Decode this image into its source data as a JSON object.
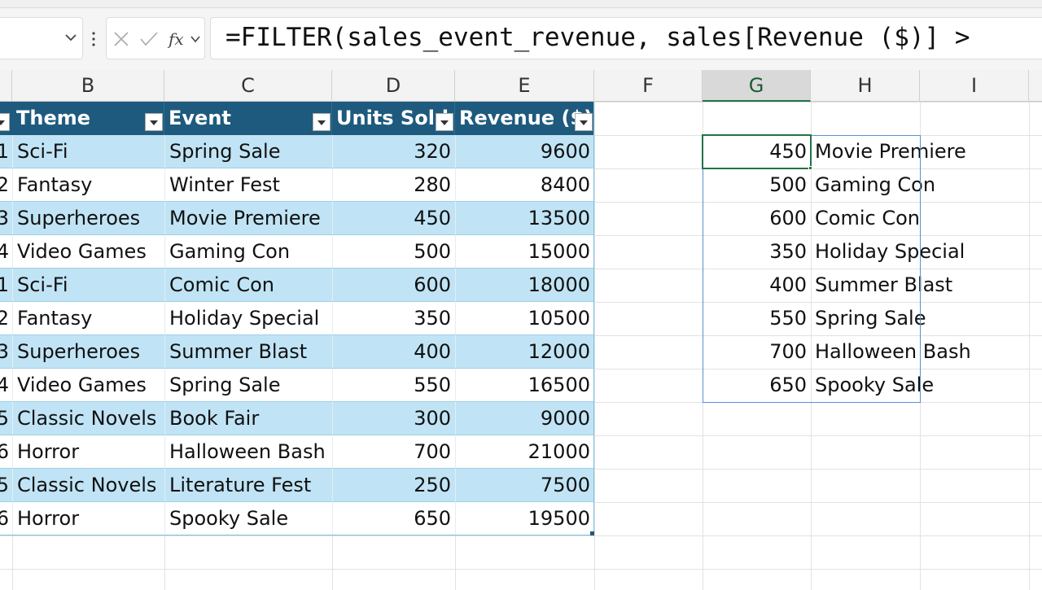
{
  "formula_bar": {
    "formula": "=FILTER(sales_event_revenue, sales[Revenue ($)] >"
  },
  "columns": [
    "B",
    "C",
    "D",
    "E",
    "F",
    "G",
    "H",
    "I"
  ],
  "table": {
    "headers": [
      "Theme",
      "Event",
      "Units Sold",
      "Revenue ($)"
    ],
    "rows": [
      [
        1,
        "Sci-Fi",
        "Spring Sale",
        320,
        9600
      ],
      [
        2,
        "Fantasy",
        "Winter Fest",
        280,
        8400
      ],
      [
        3,
        "Superheroes",
        "Movie Premiere",
        450,
        13500
      ],
      [
        4,
        "Video Games",
        "Gaming Con",
        500,
        15000
      ],
      [
        1,
        "Sci-Fi",
        "Comic Con",
        600,
        18000
      ],
      [
        2,
        "Fantasy",
        "Holiday Special",
        350,
        10500
      ],
      [
        3,
        "Superheroes",
        "Summer Blast",
        400,
        12000
      ],
      [
        4,
        "Video Games",
        "Spring Sale",
        550,
        16500
      ],
      [
        5,
        "Classic Novels",
        "Book Fair",
        300,
        9000
      ],
      [
        6,
        "Horror",
        "Halloween Bash",
        700,
        21000
      ],
      [
        5,
        "Classic Novels",
        "Literature Fest",
        250,
        7500
      ],
      [
        6,
        "Horror",
        "Spooky Sale",
        650,
        19500
      ]
    ]
  },
  "spill": {
    "rows": [
      [
        450,
        "Movie Premiere"
      ],
      [
        500,
        "Gaming Con"
      ],
      [
        600,
        "Comic Con"
      ],
      [
        350,
        "Holiday Special"
      ],
      [
        400,
        "Summer Blast"
      ],
      [
        550,
        "Spring Sale"
      ],
      [
        700,
        "Halloween Bash"
      ],
      [
        650,
        "Spooky Sale"
      ]
    ]
  }
}
